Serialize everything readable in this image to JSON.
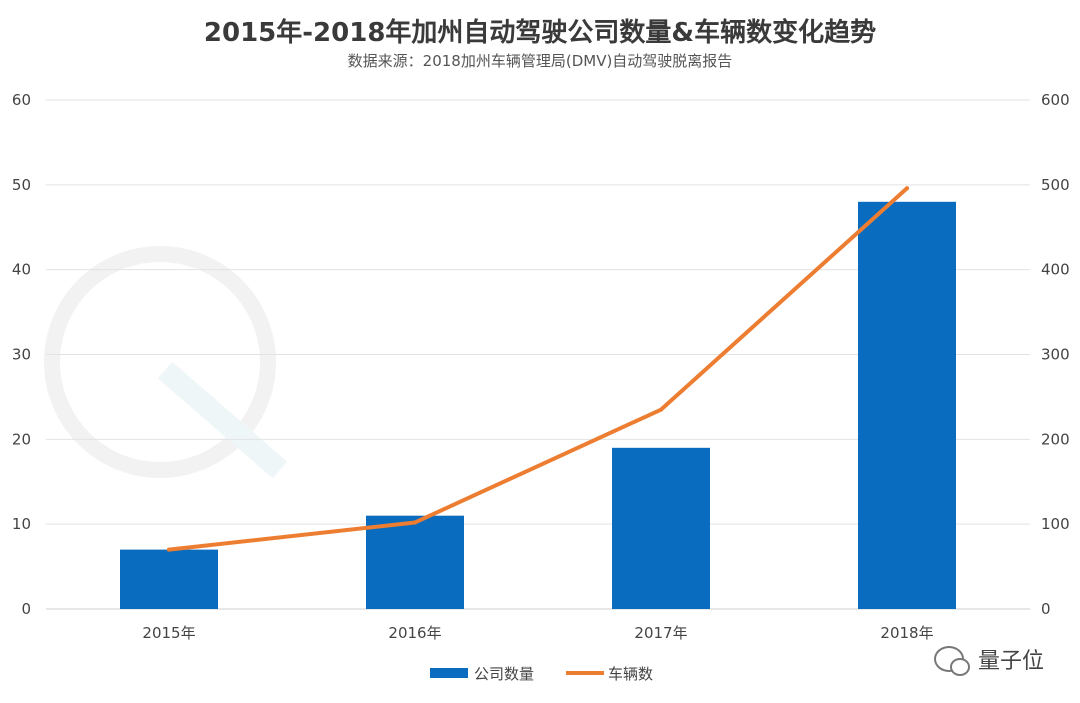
{
  "chart_data": {
    "type": "bar+line",
    "title": "2015年-2018年加州自动驾驶公司数量&车辆数变化趋势",
    "subtitle": "数据来源：2018加州车辆管理局(DMV)自动驾驶脱离报告",
    "categories": [
      "2015年",
      "2016年",
      "2017年",
      "2018年"
    ],
    "series": [
      {
        "name": "公司数量",
        "type": "bar",
        "axis": "left",
        "color": "#0a6cbf",
        "values": [
          7,
          11,
          19,
          48
        ]
      },
      {
        "name": "车辆数",
        "type": "line",
        "axis": "right",
        "color": "#ed7d31",
        "values": [
          70,
          102,
          235,
          496
        ]
      }
    ],
    "y_left": {
      "min": 0,
      "max": 60,
      "ticks": [
        "0",
        "10",
        "20",
        "30",
        "40",
        "50",
        "60"
      ]
    },
    "y_right": {
      "min": 0,
      "max": 600,
      "ticks": [
        "0",
        "100",
        "200",
        "300",
        "400",
        "500",
        "600"
      ]
    },
    "grid": true,
    "legend_position": "bottom-center"
  },
  "watermark": {
    "text": "量子位",
    "logo": "wechat-icon"
  }
}
